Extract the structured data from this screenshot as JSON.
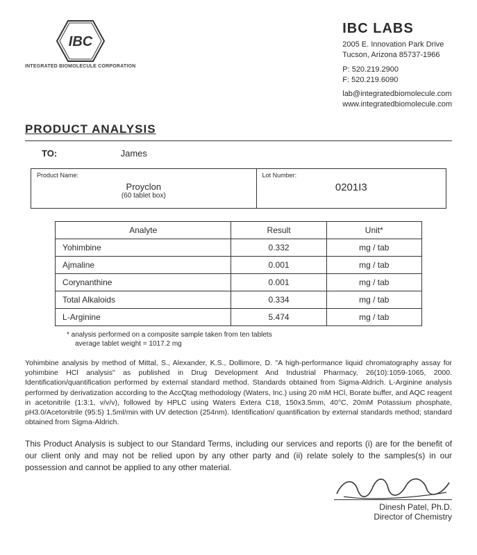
{
  "company": {
    "name": "IBC LABS",
    "addr1": "2005 E. Innovation Park Drive",
    "addr2": "Tucson, Arizona 85737-1966",
    "phone": "P:  520.219.2900",
    "fax": "F:  520.219.6090",
    "email": "lab@integratedbiomolecule.com",
    "web": "www.integratedbiomolecule.com",
    "logo_caption": "INTEGRATED BIOMOLECULE CORPORATION",
    "logo_text": "IBC"
  },
  "title": "PRODUCT ANALYSIS",
  "to": {
    "label": "TO:",
    "value": "James"
  },
  "product": {
    "name_label": "Product Name:",
    "name": "Proyclon",
    "sub": "(60 tablet box)",
    "lot_label": "Lot Number:",
    "lot": "0201I3"
  },
  "table": {
    "headers": {
      "analyte": "Analyte",
      "result": "Result",
      "unit": "Unit*"
    },
    "rows": [
      {
        "analyte": "Yohimbine",
        "result": "0.332",
        "unit": "mg / tab"
      },
      {
        "analyte": "Ajmaline",
        "result": "0.001",
        "unit": "mg / tab"
      },
      {
        "analyte": "Corynanthine",
        "result": "0.001",
        "unit": "mg / tab"
      },
      {
        "analyte": "Total Alkaloids",
        "result": "0.334",
        "unit": "mg / tab"
      },
      {
        "analyte": "L-Arginine",
        "result": "5.474",
        "unit": "mg / tab"
      }
    ]
  },
  "footnote1": "* analysis performed on a composite sample taken from ten tablets",
  "footnote2": "average tablet weight = 1017.2 mg",
  "methods": "Yohimbine analysis by method of Mittal, S., Alexander, K.S., Dollimore, D. \"A high-performance liquid chromatography assay for yohimbine HCl analysis\" as published in Drug Development And Industrial Pharmacy, 26(10):1059-1065, 2000. Identification/quantification performed by external standard method. Standards obtained from Sigma-Aldrich. L-Arginine analysis performed by derivatization according to the AccQtag methodology (Waters, Inc.) using 20 mM HCl, Borate buffer, and AQC reagent in acetonitrile (1:3:1, v/v/v), followed by HPLC using Waters Extera C18, 150x3.5mm, 40°C, 20mM Potassium phosphate, pH3.0/Acetonitrile (95:5) 1.5ml/min with UV detection (254nm). Identification/ quantification by external standards method; standard obtained from Sigma-Aldrich.",
  "disclaimer": "This Product Analysis is subject to our Standard Terms, including our services and reports (i) are for the benefit of our client only and may not be relied upon by any other party and (ii) relate solely to the samples(s) in our possession and cannot be applied to any other material.",
  "signatory": {
    "name": "Dinesh Patel, Ph.D.",
    "title": "Director of Chemistry"
  },
  "colors": {
    "text": "#2a2a2a",
    "border": "#333333",
    "bg": "#ffffff"
  }
}
